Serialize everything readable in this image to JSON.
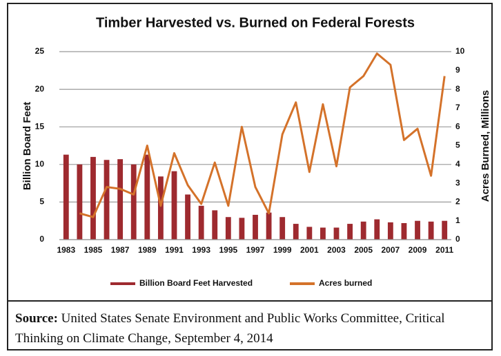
{
  "chart_data": {
    "type": "bar-line",
    "title": "Timber Harvested vs. Burned on Federal Forests",
    "ylabel": "Billion Board Feet",
    "y2label": "Acres Burned, Millions",
    "categories": [
      "1983",
      null,
      "1985",
      null,
      "1987",
      null,
      "1989",
      null,
      "1991",
      null,
      "1993",
      null,
      "1995",
      null,
      "1997",
      null,
      "1999",
      null,
      "2001",
      null,
      "2003",
      null,
      "2005",
      null,
      "2007",
      null,
      "2009",
      null,
      "2011"
    ],
    "series": [
      {
        "name": "Billion Board Feet Harvested",
        "type": "bar",
        "color": "#9e2a2f",
        "values": [
          11.3,
          10.0,
          11.0,
          10.6,
          10.7,
          10.0,
          11.3,
          8.4,
          9.1,
          6.0,
          4.5,
          3.9,
          3.0,
          2.9,
          3.3,
          3.6,
          3.0,
          2.1,
          1.7,
          1.6,
          1.6,
          2.1,
          2.4,
          2.7,
          2.3,
          2.2,
          2.5,
          2.4,
          2.5
        ]
      },
      {
        "name": "Acres burned",
        "type": "line",
        "axis": "y2",
        "color": "#d4722a",
        "values": [
          null,
          1.4,
          1.2,
          2.8,
          2.7,
          2.4,
          5.0,
          1.8,
          4.6,
          2.9,
          1.9,
          4.1,
          1.8,
          6.0,
          2.8,
          1.4,
          5.6,
          7.3,
          3.6,
          7.2,
          3.9,
          8.1,
          8.7,
          9.9,
          9.3,
          5.3,
          5.9,
          3.4,
          8.7
        ]
      }
    ],
    "ylim": [
      0,
      25
    ],
    "yticks": [
      0,
      5,
      10,
      15,
      20,
      25
    ],
    "y2lim": [
      0,
      10
    ],
    "y2ticks": [
      0,
      1,
      2,
      3,
      4,
      5,
      6,
      7,
      8,
      9,
      10
    ],
    "grid": true,
    "legend": "bottom"
  },
  "source": {
    "label": "Source:",
    "text": "United States Senate Environment and Public Works Committee, Critical Thinking on Climate Change, September 4, 2014"
  }
}
